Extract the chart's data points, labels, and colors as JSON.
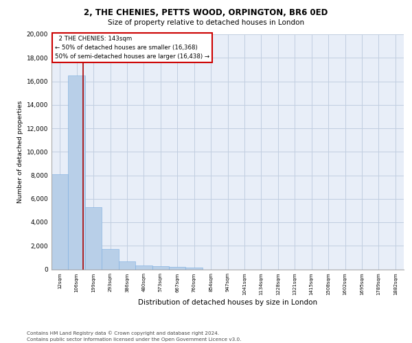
{
  "title_line1": "2, THE CHENIES, PETTS WOOD, ORPINGTON, BR6 0ED",
  "title_line2": "Size of property relative to detached houses in London",
  "xlabel": "Distribution of detached houses by size in London",
  "ylabel": "Number of detached properties",
  "bar_labels": [
    "12sqm",
    "106sqm",
    "199sqm",
    "293sqm",
    "386sqm",
    "480sqm",
    "573sqm",
    "667sqm",
    "760sqm",
    "854sqm",
    "947sqm",
    "1041sqm",
    "1134sqm",
    "1228sqm",
    "1321sqm",
    "1415sqm",
    "1508sqm",
    "1602sqm",
    "1695sqm",
    "1789sqm",
    "1882sqm"
  ],
  "bar_values": [
    8100,
    16500,
    5300,
    1750,
    700,
    350,
    280,
    200,
    150,
    0,
    0,
    0,
    0,
    0,
    0,
    0,
    0,
    0,
    0,
    0,
    0
  ],
  "bar_color": "#b8cfe8",
  "bar_edge_color": "#7aace0",
  "ylim": [
    0,
    20000
  ],
  "yticks": [
    0,
    2000,
    4000,
    6000,
    8000,
    10000,
    12000,
    14000,
    16000,
    18000,
    20000
  ],
  "property_sqm": 143,
  "smaller_count": 16368,
  "larger_count": 16438,
  "footer_line1": "Contains HM Land Registry data © Crown copyright and database right 2024.",
  "footer_line2": "Contains public sector information licensed under the Open Government Licence v3.0.",
  "bg_color": "#e8eef8",
  "grid_color": "#c0cde0",
  "vline_color": "#aa0000",
  "ann_edge_color": "#cc0000"
}
